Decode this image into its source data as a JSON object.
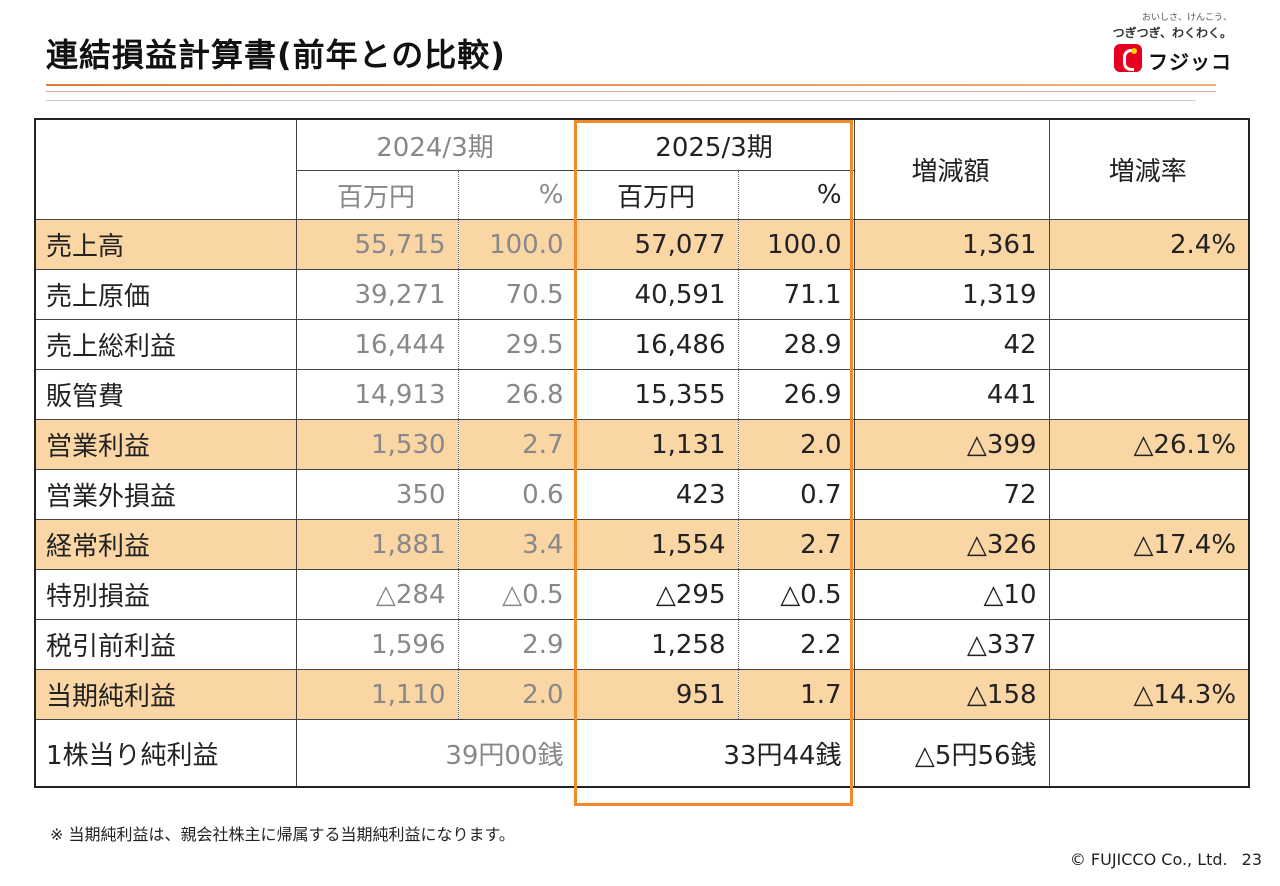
{
  "header": {
    "title": "連結損益計算書(前年との比較)",
    "logo_tagline1": "おいしさ、けんこう、",
    "logo_tagline2": "つぎつぎ、わくわく。",
    "logo_name": "フジッコ"
  },
  "table": {
    "col_prev_period": "2024/3期",
    "col_curr_period": "2025/3期",
    "unit_million": "百万円",
    "unit_pct": "%",
    "col_change_amount": "増減額",
    "col_change_rate": "増減率",
    "rows": [
      {
        "label": "売上高",
        "prev_amt": "55,715",
        "prev_pct": "100.0",
        "cur_amt": "57,077",
        "cur_pct": "100.0",
        "change": "1,361",
        "rate": "2.4%",
        "highlight": true
      },
      {
        "label": "売上原価",
        "prev_amt": "39,271",
        "prev_pct": "70.5",
        "cur_amt": "40,591",
        "cur_pct": "71.1",
        "change": "1,319",
        "rate": "",
        "highlight": false
      },
      {
        "label": "売上総利益",
        "prev_amt": "16,444",
        "prev_pct": "29.5",
        "cur_amt": "16,486",
        "cur_pct": "28.9",
        "change": "42",
        "rate": "",
        "highlight": false
      },
      {
        "label": "販管費",
        "prev_amt": "14,913",
        "prev_pct": "26.8",
        "cur_amt": "15,355",
        "cur_pct": "26.9",
        "change": "441",
        "rate": "",
        "highlight": false
      },
      {
        "label": "営業利益",
        "prev_amt": "1,530",
        "prev_pct": "2.7",
        "cur_amt": "1,131",
        "cur_pct": "2.0",
        "change": "△399",
        "rate": "△26.1%",
        "highlight": true
      },
      {
        "label": "営業外損益",
        "prev_amt": "350",
        "prev_pct": "0.6",
        "cur_amt": "423",
        "cur_pct": "0.7",
        "change": "72",
        "rate": "",
        "highlight": false
      },
      {
        "label": "経常利益",
        "prev_amt": "1,881",
        "prev_pct": "3.4",
        "cur_amt": "1,554",
        "cur_pct": "2.7",
        "change": "△326",
        "rate": "△17.4%",
        "highlight": true
      },
      {
        "label": "特別損益",
        "prev_amt": "△284",
        "prev_pct": "△0.5",
        "cur_amt": "△295",
        "cur_pct": "△0.5",
        "change": "△10",
        "rate": "",
        "highlight": false
      },
      {
        "label": "税引前利益",
        "prev_amt": "1,596",
        "prev_pct": "2.9",
        "cur_amt": "1,258",
        "cur_pct": "2.2",
        "change": "△337",
        "rate": "",
        "highlight": false
      },
      {
        "label": "当期純利益",
        "prev_amt": "1,110",
        "prev_pct": "2.0",
        "cur_amt": "951",
        "cur_pct": "1.7",
        "change": "△158",
        "rate": "△14.3%",
        "highlight": true
      }
    ],
    "eps": {
      "label": "1株当り純利益",
      "prev": "39円00銭",
      "cur": "33円44銭",
      "change": "△5円56銭",
      "rate": ""
    }
  },
  "footer": {
    "note": "※ 当期純利益は、親会社株主に帰属する当期純利益になります。",
    "copyright": "© FUJICCO Co., Ltd.",
    "page_number": "23"
  },
  "colors": {
    "highlight_row": "#fad6a5",
    "current_period_frame": "#f08a2c",
    "prev_period_text": "#888888"
  }
}
